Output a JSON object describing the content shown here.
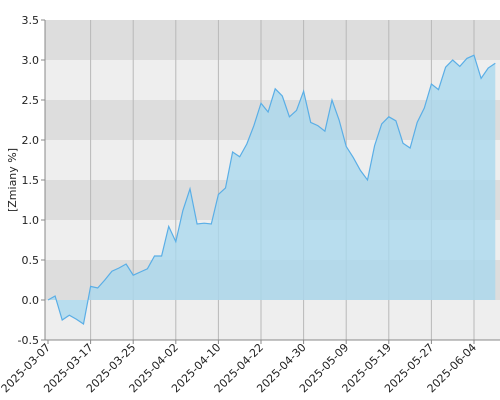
{
  "chart_data": {
    "type": "area",
    "y_label": "[Zmiany %]",
    "categories": [
      "2025-03-07",
      null,
      null,
      null,
      null,
      null,
      "2025-03-17",
      null,
      null,
      null,
      null,
      null,
      "2025-03-25",
      null,
      null,
      null,
      null,
      null,
      "2025-04-02",
      null,
      null,
      null,
      null,
      null,
      "2025-04-10",
      null,
      null,
      null,
      null,
      null,
      "2025-04-22",
      null,
      null,
      null,
      null,
      null,
      "2025-04-30",
      null,
      null,
      null,
      null,
      null,
      "2025-05-09",
      null,
      null,
      null,
      null,
      null,
      "2025-05-19",
      null,
      null,
      null,
      null,
      null,
      "2025-05-27",
      null,
      null,
      null,
      null,
      null,
      "2025-06-04",
      null,
      null,
      null
    ],
    "values": [
      0.0,
      0.05,
      -0.25,
      -0.19,
      -0.24,
      -0.3,
      0.17,
      0.15,
      0.25,
      0.36,
      0.4,
      0.45,
      0.31,
      0.35,
      0.39,
      0.55,
      0.55,
      0.92,
      0.73,
      1.12,
      1.39,
      0.95,
      0.96,
      0.95,
      1.32,
      1.4,
      1.85,
      1.79,
      1.95,
      2.18,
      2.46,
      2.35,
      2.64,
      2.55,
      2.29,
      2.37,
      2.61,
      2.22,
      2.18,
      2.11,
      2.5,
      2.25,
      1.92,
      1.78,
      1.62,
      1.5,
      1.93,
      2.2,
      2.29,
      2.24,
      1.96,
      1.9,
      2.22,
      2.4,
      2.7,
      2.63,
      2.91,
      3.0,
      2.92,
      3.02,
      3.06,
      2.77,
      2.9,
      2.96
    ],
    "color": "#5aaee6",
    "fill": "#aad8ee",
    "ylim": [
      -0.5,
      3.5
    ],
    "yticks": [
      -0.5,
      {
        "value": 0.0,
        "label": "0.0"
      },
      0.5,
      {
        "value": 1.0,
        "label": "1.0"
      },
      1.5,
      {
        "value": 2.0,
        "label": "2.0"
      },
      2.5,
      {
        "value": 3.0,
        "label": "3.0"
      },
      3.5
    ],
    "grid": true
  }
}
